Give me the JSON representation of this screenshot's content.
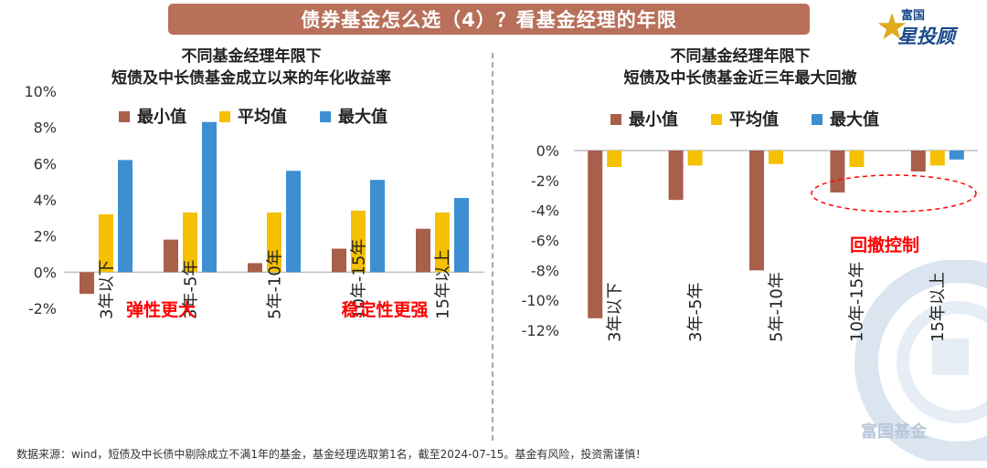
{
  "header": {
    "title": "债券基金怎么选（4）？看基金经理的年限"
  },
  "logo": {
    "top_text": "富国",
    "name": "星投顾"
  },
  "watermark": {
    "text": "富国基金"
  },
  "footnote": "数据来源：wind，短债及中长债中剔除成立不满1年的基金，基金经理选取第1名，截至2024-07-15。基金有风险，投资需谨慎！",
  "colors": {
    "min": "#a8604a",
    "avg": "#f5c000",
    "max": "#3d8fd1",
    "annotation": "#ff0000",
    "title_bar": "#b8705a"
  },
  "chart_data": [
    {
      "type": "bar",
      "title_line1": "不同基金经理年限下",
      "title_line2": "短债及中长债基金成立以来的年化收益率",
      "categories": [
        "3年以下",
        "3年-5年",
        "5年-10年",
        "10年-15年",
        "15年以上"
      ],
      "series": [
        {
          "name": "最小值",
          "values": [
            -1.2,
            1.8,
            0.5,
            1.3,
            2.4
          ]
        },
        {
          "name": "平均值",
          "values": [
            3.2,
            3.3,
            3.3,
            3.4,
            3.3
          ]
        },
        {
          "name": "最大值",
          "values": [
            6.2,
            8.3,
            5.6,
            5.1,
            4.1
          ]
        }
      ],
      "yticks": [
        "10%",
        "8%",
        "6%",
        "4%",
        "2%",
        "0%",
        "-2%"
      ],
      "ylim": [
        -2,
        10
      ],
      "legend_position": "top",
      "annotations": [
        "弹性更大",
        "稳定性更强"
      ]
    },
    {
      "type": "bar",
      "title_line1": "不同基金经理年限下",
      "title_line2": "短债及中长债基金近三年最大回撤",
      "categories": [
        "3年以下",
        "3年-5年",
        "5年-10年",
        "10年-15年",
        "15年以上"
      ],
      "series": [
        {
          "name": "最小值",
          "values": [
            -11.2,
            -3.3,
            -8.0,
            -2.8,
            -1.4
          ]
        },
        {
          "name": "平均值",
          "values": [
            -1.1,
            -1.0,
            -0.9,
            -1.1,
            -1.0
          ]
        },
        {
          "name": "最大值",
          "values": [
            0,
            0,
            0,
            0,
            -0.6
          ]
        }
      ],
      "yticks": [
        "0%",
        "-2%",
        "-4%",
        "-6%",
        "-8%",
        "-10%",
        "-12%"
      ],
      "ylim": [
        -12,
        0
      ],
      "legend_position": "top",
      "annotations": [
        "回撤控制"
      ]
    }
  ]
}
